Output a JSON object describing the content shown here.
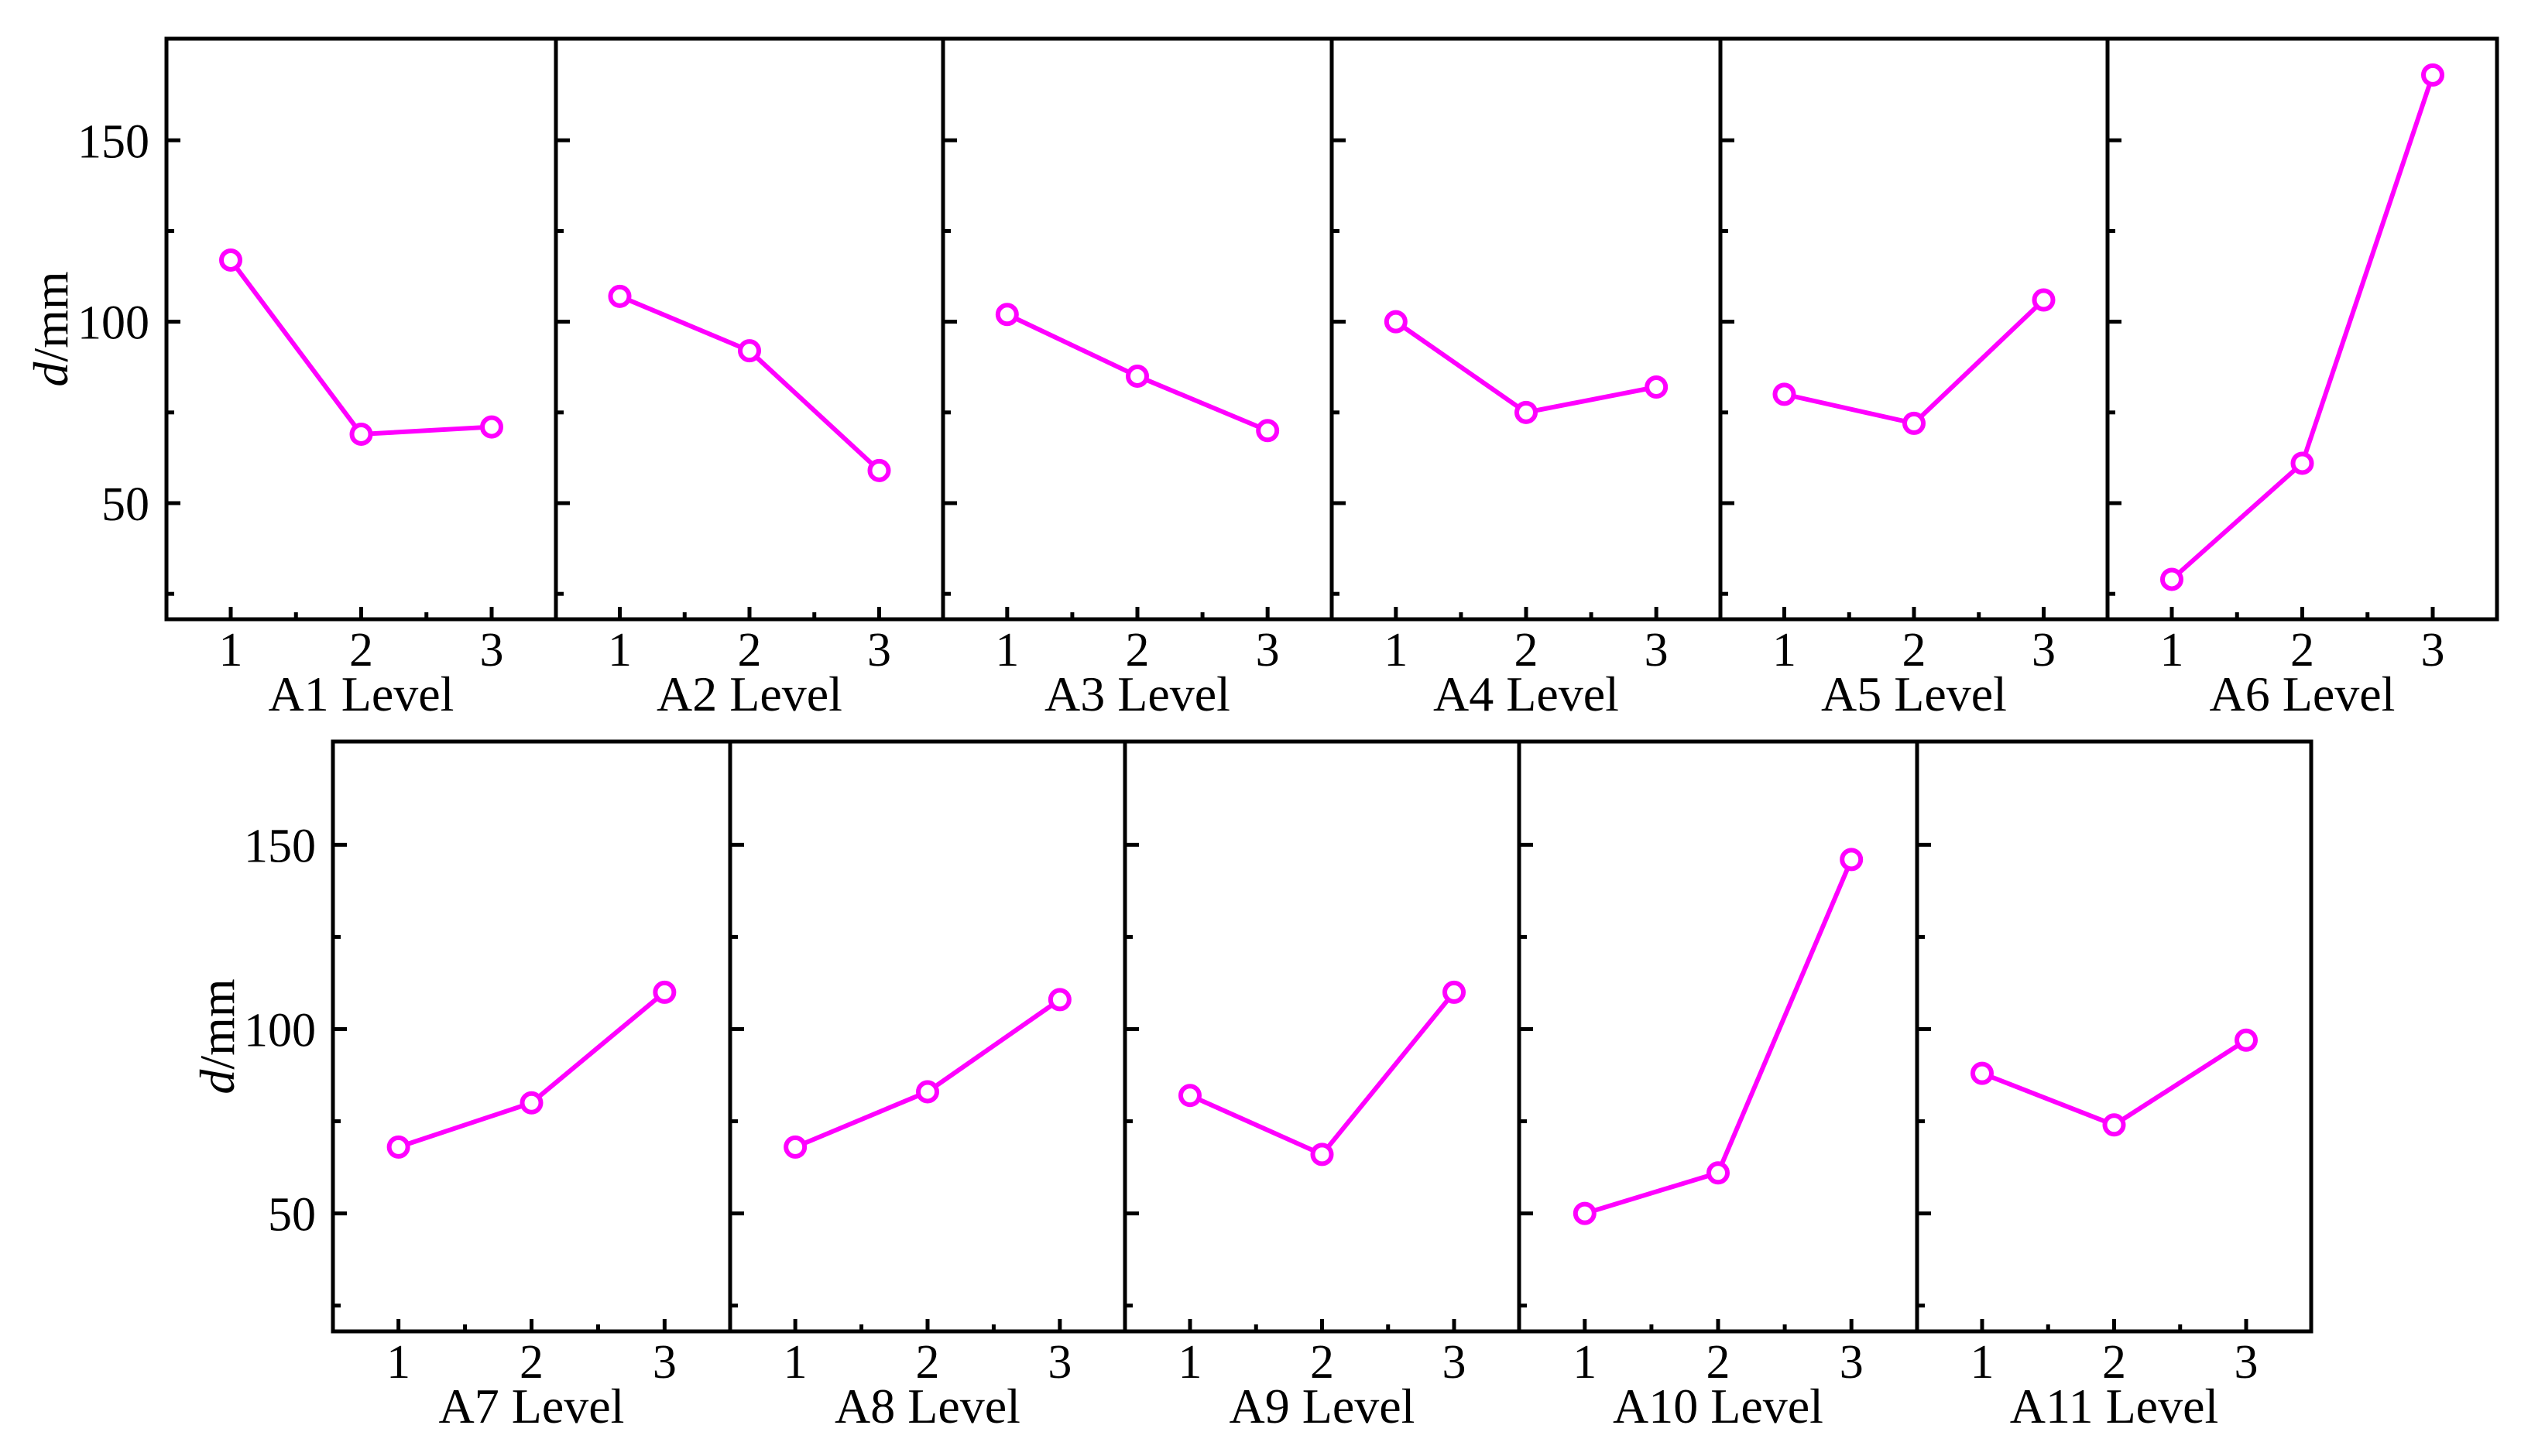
{
  "colors": {
    "series": "#ff00ff",
    "axis": "#000000",
    "background": "#ffffff"
  },
  "y_axis": {
    "label_italic": "d",
    "label_unit": "/mm",
    "ticks": [
      "50",
      "100",
      "150"
    ]
  },
  "chart_data": [
    {
      "type": "line",
      "title": "",
      "xlabel": "A1 Level",
      "ylabel": "d/mm",
      "categories": [
        "1",
        "2",
        "3"
      ],
      "values": [
        117,
        69,
        71
      ],
      "ylim": [
        18,
        178
      ]
    },
    {
      "type": "line",
      "title": "",
      "xlabel": "A2 Level",
      "ylabel": "d/mm",
      "categories": [
        "1",
        "2",
        "3"
      ],
      "values": [
        107,
        92,
        59
      ],
      "ylim": [
        18,
        178
      ]
    },
    {
      "type": "line",
      "title": "",
      "xlabel": "A3 Level",
      "ylabel": "d/mm",
      "categories": [
        "1",
        "2",
        "3"
      ],
      "values": [
        102,
        85,
        70
      ],
      "ylim": [
        18,
        178
      ]
    },
    {
      "type": "line",
      "title": "",
      "xlabel": "A4 Level",
      "ylabel": "d/mm",
      "categories": [
        "1",
        "2",
        "3"
      ],
      "values": [
        100,
        75,
        82
      ],
      "ylim": [
        18,
        178
      ]
    },
    {
      "type": "line",
      "title": "",
      "xlabel": "A5 Level",
      "ylabel": "d/mm",
      "categories": [
        "1",
        "2",
        "3"
      ],
      "values": [
        80,
        72,
        106
      ],
      "ylim": [
        18,
        178
      ]
    },
    {
      "type": "line",
      "title": "",
      "xlabel": "A6 Level",
      "ylabel": "d/mm",
      "categories": [
        "1",
        "2",
        "3"
      ],
      "values": [
        29,
        61,
        168
      ],
      "ylim": [
        18,
        178
      ]
    },
    {
      "type": "line",
      "title": "",
      "xlabel": "A7 Level",
      "ylabel": "d/mm",
      "categories": [
        "1",
        "2",
        "3"
      ],
      "values": [
        68,
        80,
        110
      ],
      "ylim": [
        18,
        178
      ]
    },
    {
      "type": "line",
      "title": "",
      "xlabel": "A8 Level",
      "ylabel": "d/mm",
      "categories": [
        "1",
        "2",
        "3"
      ],
      "values": [
        68,
        83,
        108
      ],
      "ylim": [
        18,
        178
      ]
    },
    {
      "type": "line",
      "title": "",
      "xlabel": "A9 Level",
      "ylabel": "d/mm",
      "categories": [
        "1",
        "2",
        "3"
      ],
      "values": [
        82,
        66,
        110
      ],
      "ylim": [
        18,
        178
      ]
    },
    {
      "type": "line",
      "title": "",
      "xlabel": "A10 Level",
      "ylabel": "d/mm",
      "categories": [
        "1",
        "2",
        "3"
      ],
      "values": [
        50,
        61,
        146
      ],
      "ylim": [
        18,
        178
      ]
    },
    {
      "type": "line",
      "title": "",
      "xlabel": "A11 Level",
      "ylabel": "d/mm",
      "categories": [
        "1",
        "2",
        "3"
      ],
      "values": [
        88,
        74,
        97
      ],
      "ylim": [
        18,
        178
      ]
    }
  ]
}
